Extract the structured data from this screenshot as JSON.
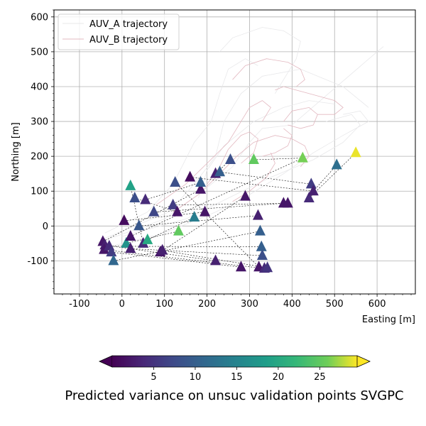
{
  "chart_data": {
    "type": "scatter",
    "title": "",
    "xlabel": "Easting [m]",
    "ylabel": "Northing [m]",
    "xlim": [
      -160,
      690
    ],
    "ylim": [
      -195,
      620
    ],
    "xticks": [
      -100,
      0,
      100,
      200,
      300,
      400,
      500,
      600
    ],
    "yticks": [
      -100,
      0,
      100,
      200,
      300,
      400,
      500,
      600
    ],
    "grid": true,
    "legend": {
      "placement": "top-left",
      "entries": [
        "AUV_A trajectory",
        "AUV_B trajectory"
      ]
    },
    "series": [
      {
        "name": "AUV_A trajectory",
        "color": "#e8e8ea",
        "loops": [
          [
            [
              -60,
              -50
            ],
            [
              100,
              20
            ],
            [
              190,
              100
            ],
            [
              260,
              170
            ],
            [
              300,
              240
            ],
            [
              330,
              280
            ],
            [
              400,
              290
            ],
            [
              600,
              500
            ],
            [
              615,
              515
            ]
          ],
          [
            [
              -50,
              -40
            ],
            [
              110,
              40
            ],
            [
              170,
              120
            ],
            [
              220,
              200
            ],
            [
              240,
              300
            ],
            [
              280,
              380
            ],
            [
              330,
              430
            ],
            [
              420,
              450
            ],
            [
              520,
              400
            ],
            [
              580,
              340
            ]
          ],
          [
            [
              -40,
              -20
            ],
            [
              60,
              40
            ],
            [
              120,
              120
            ],
            [
              170,
              240
            ],
            [
              210,
              300
            ],
            [
              230,
              380
            ],
            [
              250,
              450
            ],
            [
              290,
              480
            ],
            [
              320,
              460
            ]
          ],
          [
            [
              0,
              -30
            ],
            [
              150,
              20
            ],
            [
              250,
              80
            ],
            [
              350,
              140
            ],
            [
              450,
              190
            ],
            [
              520,
              240
            ],
            [
              560,
              290
            ],
            [
              540,
              320
            ],
            [
              480,
              300
            ]
          ],
          [
            [
              230,
              500
            ],
            [
              260,
              540
            ],
            [
              330,
              570
            ],
            [
              380,
              560
            ],
            [
              420,
              530
            ],
            [
              410,
              480
            ],
            [
              380,
              420
            ],
            [
              360,
              380
            ]
          ],
          [
            [
              -30,
              -60
            ],
            [
              100,
              -20
            ],
            [
              220,
              40
            ],
            [
              300,
              90
            ],
            [
              380,
              150
            ],
            [
              450,
              210
            ],
            [
              520,
              260
            ],
            [
              580,
              300
            ],
            [
              560,
              330
            ],
            [
              520,
              320
            ]
          ],
          [
            [
              180,
              80
            ],
            [
              200,
              160
            ],
            [
              240,
              230
            ],
            [
              310,
              300
            ],
            [
              380,
              340
            ],
            [
              440,
              360
            ],
            [
              500,
              350
            ]
          ]
        ]
      },
      {
        "name": "AUV_B trajectory",
        "color": "#e3b8c0",
        "loops": [
          [
            [
              80,
              60
            ],
            [
              150,
              120
            ],
            [
              200,
              180
            ],
            [
              250,
              240
            ],
            [
              280,
              300
            ],
            [
              300,
              340
            ],
            [
              330,
              360
            ],
            [
              350,
              340
            ],
            [
              330,
              300
            ]
          ],
          [
            [
              120,
              40
            ],
            [
              180,
              90
            ],
            [
              230,
              150
            ],
            [
              270,
              200
            ],
            [
              310,
              240
            ],
            [
              360,
              260
            ],
            [
              400,
              250
            ],
            [
              430,
              230
            ],
            [
              440,
              200
            ],
            [
              420,
              170
            ]
          ],
          [
            [
              260,
              420
            ],
            [
              290,
              460
            ],
            [
              340,
              480
            ],
            [
              390,
              470
            ],
            [
              420,
              450
            ],
            [
              430,
              420
            ],
            [
              410,
              400
            ]
          ],
          [
            [
              380,
              300
            ],
            [
              400,
              330
            ],
            [
              440,
              340
            ],
            [
              460,
              320
            ],
            [
              450,
              290
            ],
            [
              420,
              280
            ],
            [
              390,
              290
            ]
          ],
          [
            [
              360,
              390
            ],
            [
              380,
              400
            ],
            [
              440,
              380
            ],
            [
              500,
              360
            ],
            [
              520,
              340
            ],
            [
              500,
              320
            ],
            [
              460,
              320
            ]
          ],
          [
            [
              200,
              120
            ],
            [
              230,
              170
            ],
            [
              250,
              220
            ],
            [
              280,
              260
            ],
            [
              300,
              270
            ],
            [
              320,
              250
            ],
            [
              310,
              210
            ],
            [
              280,
              180
            ]
          ],
          [
            [
              330,
              200
            ],
            [
              360,
              210
            ],
            [
              390,
              230
            ],
            [
              400,
              260
            ],
            [
              380,
              280
            ]
          ],
          [
            [
              260,
              70
            ],
            [
              300,
              100
            ],
            [
              340,
              140
            ],
            [
              360,
              180
            ],
            [
              350,
              210
            ]
          ]
        ]
      }
    ],
    "validation_points": {
      "marker": "triangle",
      "colormap": "viridis",
      "points": [
        {
          "x": -45,
          "y": -45,
          "v": 2
        },
        {
          "x": -40,
          "y": -55,
          "v": 3
        },
        {
          "x": -42,
          "y": -68,
          "v": 2
        },
        {
          "x": -30,
          "y": -58,
          "v": 4
        },
        {
          "x": -25,
          "y": -75,
          "v": 6
        },
        {
          "x": -20,
          "y": -100,
          "v": 11
        },
        {
          "x": 5,
          "y": 15,
          "v": 1
        },
        {
          "x": 10,
          "y": -50,
          "v": 17
        },
        {
          "x": 20,
          "y": -30,
          "v": 2
        },
        {
          "x": 20,
          "y": -65,
          "v": 3
        },
        {
          "x": 20,
          "y": 115,
          "v": 19
        },
        {
          "x": 30,
          "y": 80,
          "v": 8
        },
        {
          "x": 40,
          "y": 0,
          "v": 9
        },
        {
          "x": 50,
          "y": -50,
          "v": 4
        },
        {
          "x": 55,
          "y": 75,
          "v": 4
        },
        {
          "x": 60,
          "y": -40,
          "v": 20
        },
        {
          "x": 75,
          "y": 40,
          "v": 7
        },
        {
          "x": 90,
          "y": -75,
          "v": 2
        },
        {
          "x": 95,
          "y": -70,
          "v": 3
        },
        {
          "x": 120,
          "y": 60,
          "v": 6
        },
        {
          "x": 125,
          "y": 125,
          "v": 8
        },
        {
          "x": 130,
          "y": 40,
          "v": 2
        },
        {
          "x": 133,
          "y": -15,
          "v": 25
        },
        {
          "x": 160,
          "y": 140,
          "v": 1
        },
        {
          "x": 170,
          "y": 25,
          "v": 14
        },
        {
          "x": 185,
          "y": 105,
          "v": 2
        },
        {
          "x": 185,
          "y": 125,
          "v": 10
        },
        {
          "x": 195,
          "y": 40,
          "v": 2
        },
        {
          "x": 220,
          "y": 150,
          "v": 3
        },
        {
          "x": 220,
          "y": -100,
          "v": 3
        },
        {
          "x": 230,
          "y": 155,
          "v": 10
        },
        {
          "x": 255,
          "y": 190,
          "v": 8
        },
        {
          "x": 280,
          "y": -118,
          "v": 2
        },
        {
          "x": 290,
          "y": 85,
          "v": 2
        },
        {
          "x": 310,
          "y": 190,
          "v": 25
        },
        {
          "x": 320,
          "y": 30,
          "v": 3
        },
        {
          "x": 322,
          "y": -118,
          "v": 2
        },
        {
          "x": 325,
          "y": -15,
          "v": 10
        },
        {
          "x": 328,
          "y": -60,
          "v": 10
        },
        {
          "x": 330,
          "y": -85,
          "v": 8
        },
        {
          "x": 335,
          "y": -122,
          "v": 4
        },
        {
          "x": 342,
          "y": -120,
          "v": 5
        },
        {
          "x": 380,
          "y": 65,
          "v": 2
        },
        {
          "x": 390,
          "y": 65,
          "v": 2
        },
        {
          "x": 425,
          "y": 195,
          "v": 26
        },
        {
          "x": 440,
          "y": 80,
          "v": 4
        },
        {
          "x": 445,
          "y": 120,
          "v": 6
        },
        {
          "x": 450,
          "y": 100,
          "v": 3
        },
        {
          "x": 505,
          "y": 175,
          "v": 12
        },
        {
          "x": 550,
          "y": 210,
          "v": 29
        }
      ],
      "links": [
        [
          0,
          25
        ],
        [
          1,
          29
        ],
        [
          2,
          40
        ],
        [
          3,
          38
        ],
        [
          4,
          32
        ],
        [
          5,
          37
        ],
        [
          6,
          27
        ],
        [
          7,
          22
        ],
        [
          8,
          44
        ],
        [
          9,
          39
        ],
        [
          10,
          13
        ],
        [
          11,
          21
        ],
        [
          12,
          35
        ],
        [
          14,
          26
        ],
        [
          15,
          24
        ],
        [
          16,
          42
        ],
        [
          17,
          33
        ],
        [
          18,
          41
        ],
        [
          19,
          43
        ],
        [
          20,
          36
        ],
        [
          23,
          47
        ],
        [
          28,
          31
        ],
        [
          30,
          46
        ],
        [
          34,
          44
        ],
        [
          45,
          49
        ],
        [
          48,
          47
        ]
      ]
    },
    "colorbar": {
      "label": "Predicted variance on unsuc validation points SVGPC",
      "range": [
        0,
        29.5
      ],
      "ticks": [
        5,
        10,
        15,
        20,
        25
      ],
      "extend": "both",
      "colormap": "viridis"
    }
  }
}
